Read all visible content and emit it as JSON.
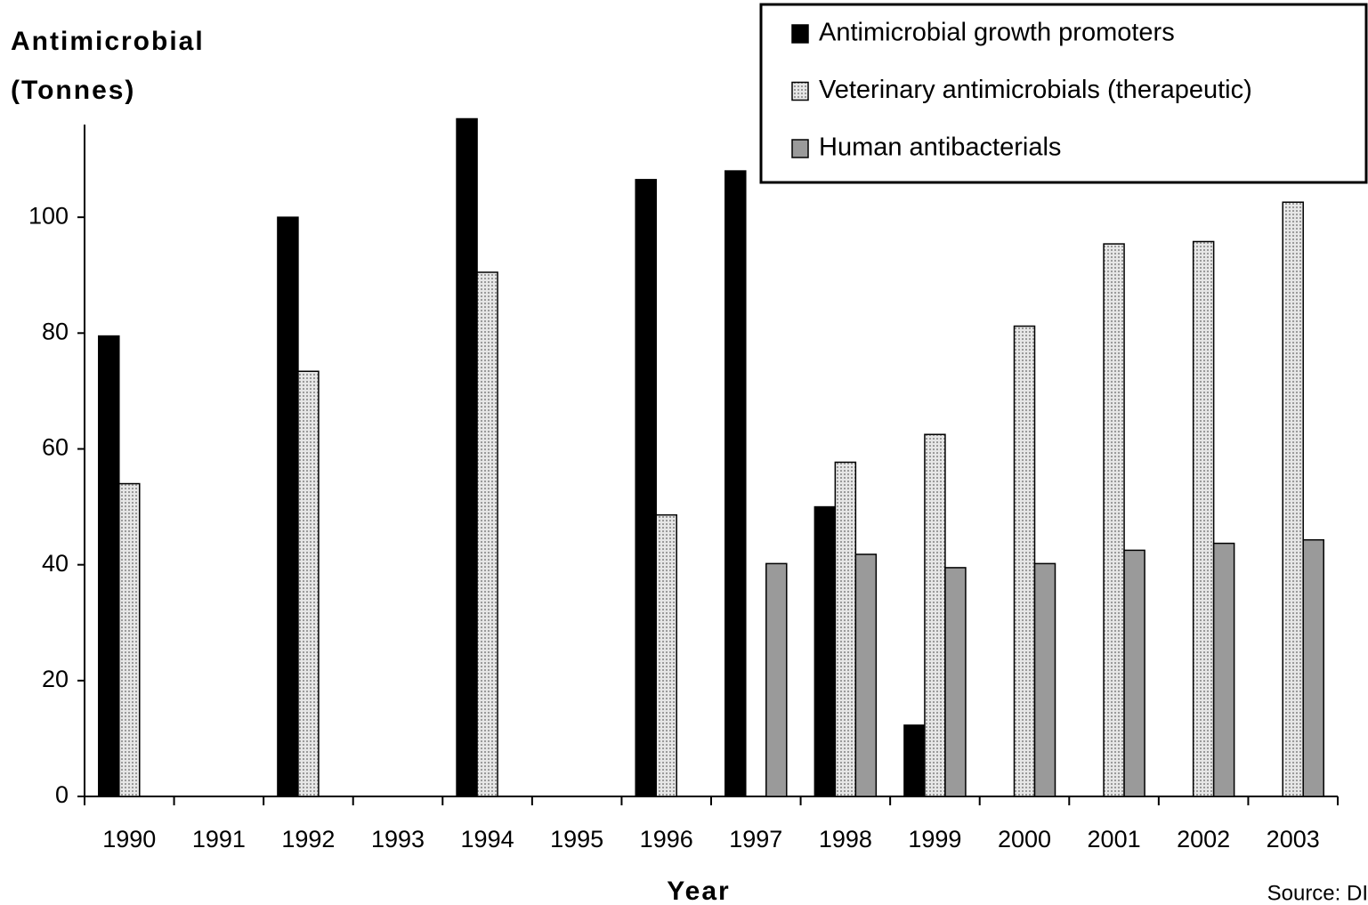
{
  "chart_data": {
    "type": "bar",
    "y_label": [
      "Antimicrobial",
      "(Tonnes)"
    ],
    "x_label": "Year",
    "source": "Source: DI",
    "categories": [
      "1990",
      "1991",
      "1992",
      "1993",
      "1994",
      "1995",
      "1996",
      "1997",
      "1998",
      "1999",
      "2000",
      "2001",
      "2002",
      "2003"
    ],
    "series": [
      {
        "name": "Antimicrobial growth promoters",
        "color": "#000000",
        "values": [
          79.5,
          null,
          100,
          null,
          117,
          null,
          106.5,
          108,
          50,
          12.3,
          null,
          null,
          null,
          null
        ]
      },
      {
        "name": "Veterinary antimicrobials (therapeutic)",
        "color": "#d4d4d4",
        "values": [
          54,
          null,
          73.4,
          null,
          90.5,
          null,
          48.6,
          null,
          57.7,
          62.5,
          81.2,
          95.4,
          95.8,
          102.6
        ]
      },
      {
        "name": "Human antibacterials",
        "color": "#9a9a9a",
        "values": [
          null,
          null,
          null,
          null,
          null,
          null,
          null,
          40.2,
          41.8,
          39.5,
          40.2,
          42.5,
          43.7,
          44.3
        ]
      }
    ],
    "ylim": [
      0,
      116
    ],
    "yticks": [
      0,
      20,
      40,
      60,
      80,
      100
    ],
    "legend": "top-right"
  }
}
